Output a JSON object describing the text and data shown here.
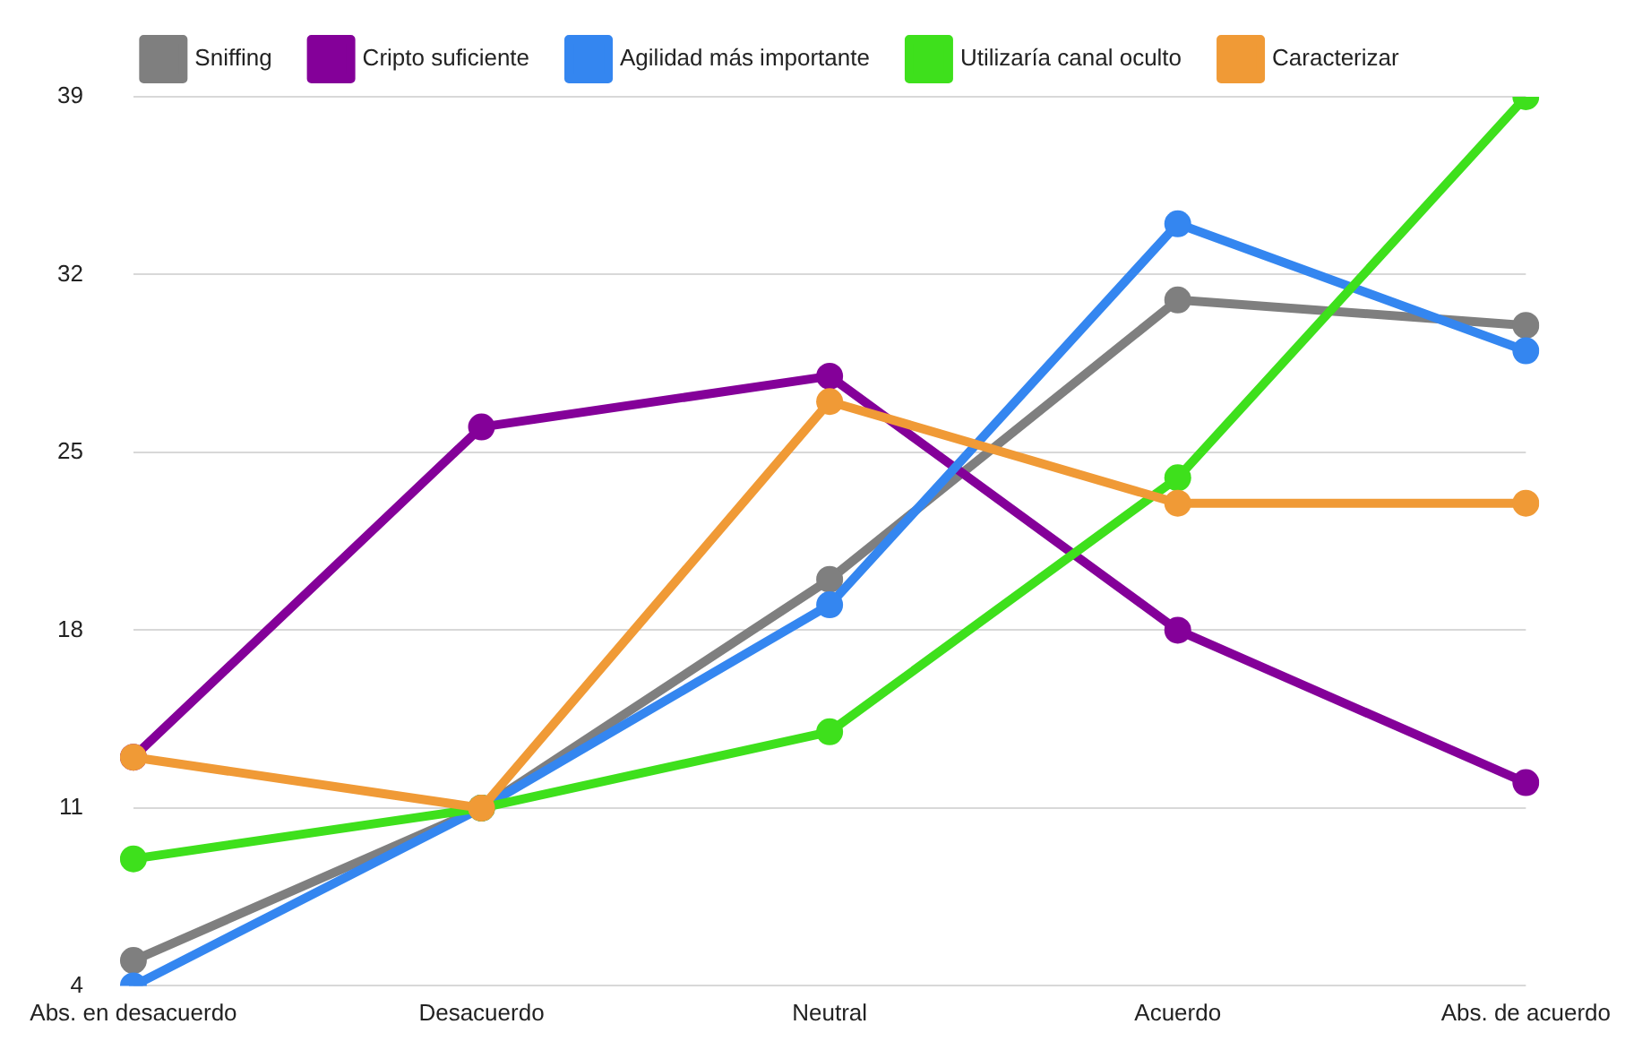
{
  "chart_data": {
    "type": "line",
    "categories": [
      "Abs. en desacuerdo",
      "Desacuerdo",
      "Neutral",
      "Acuerdo",
      "Abs. de acuerdo"
    ],
    "series": [
      {
        "name": "Sniffing",
        "color": "#7f7f7f",
        "values": [
          5,
          11,
          20,
          31,
          30
        ]
      },
      {
        "name": "Cripto suficiente",
        "color": "#840099",
        "values": [
          13,
          26,
          28,
          18,
          12
        ]
      },
      {
        "name": "Agilidad más importante",
        "color": "#3486f0",
        "values": [
          4,
          11,
          19,
          34,
          29
        ]
      },
      {
        "name": "Utilizaría canal oculto",
        "color": "#3ee01c",
        "values": [
          9,
          11,
          14,
          24,
          39
        ]
      },
      {
        "name": "Caracterizar",
        "color": "#f09a36",
        "values": [
          13,
          11,
          27,
          23,
          23
        ]
      }
    ],
    "ylim": [
      4,
      39
    ],
    "yticks": [
      4,
      11,
      18,
      25,
      32,
      39
    ],
    "grid": "y",
    "legend": "top",
    "marker": "circle",
    "line_style": "solid"
  }
}
